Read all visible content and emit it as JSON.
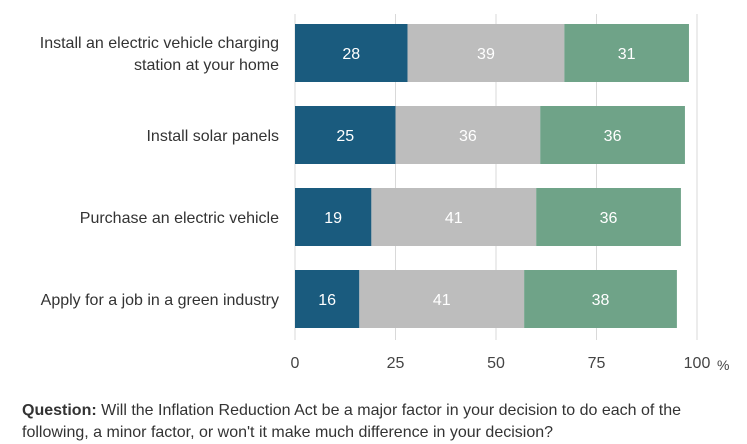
{
  "chart_data": {
    "type": "bar",
    "orientation": "horizontal",
    "stacked": true,
    "categories": [
      [
        "Install an electric vehicle charging",
        "station at your home"
      ],
      [
        "Install solar panels"
      ],
      [
        "Purchase an electric vehicle"
      ],
      [
        "Apply for a job in a green industry"
      ]
    ],
    "series": [
      {
        "values": [
          28,
          25,
          19,
          16
        ],
        "color": "#1a5b7e"
      },
      {
        "values": [
          39,
          36,
          41,
          41
        ],
        "color": "#bdbdbd"
      },
      {
        "values": [
          31,
          36,
          36,
          38
        ],
        "color": "#6fa388"
      }
    ],
    "xlim": [
      0,
      100
    ],
    "x_ticks": [
      "0",
      "25",
      "50",
      "75",
      "100"
    ],
    "x_unit": "%",
    "grid": "vertical",
    "title": "",
    "xlabel": "",
    "ylabel": ""
  },
  "question": {
    "label": "Question:",
    "text": "Will the Inflation Reduction Act be a major factor in your decision to do each of the",
    "text2": "following, a minor factor, or won't it make much difference in your decision?"
  }
}
